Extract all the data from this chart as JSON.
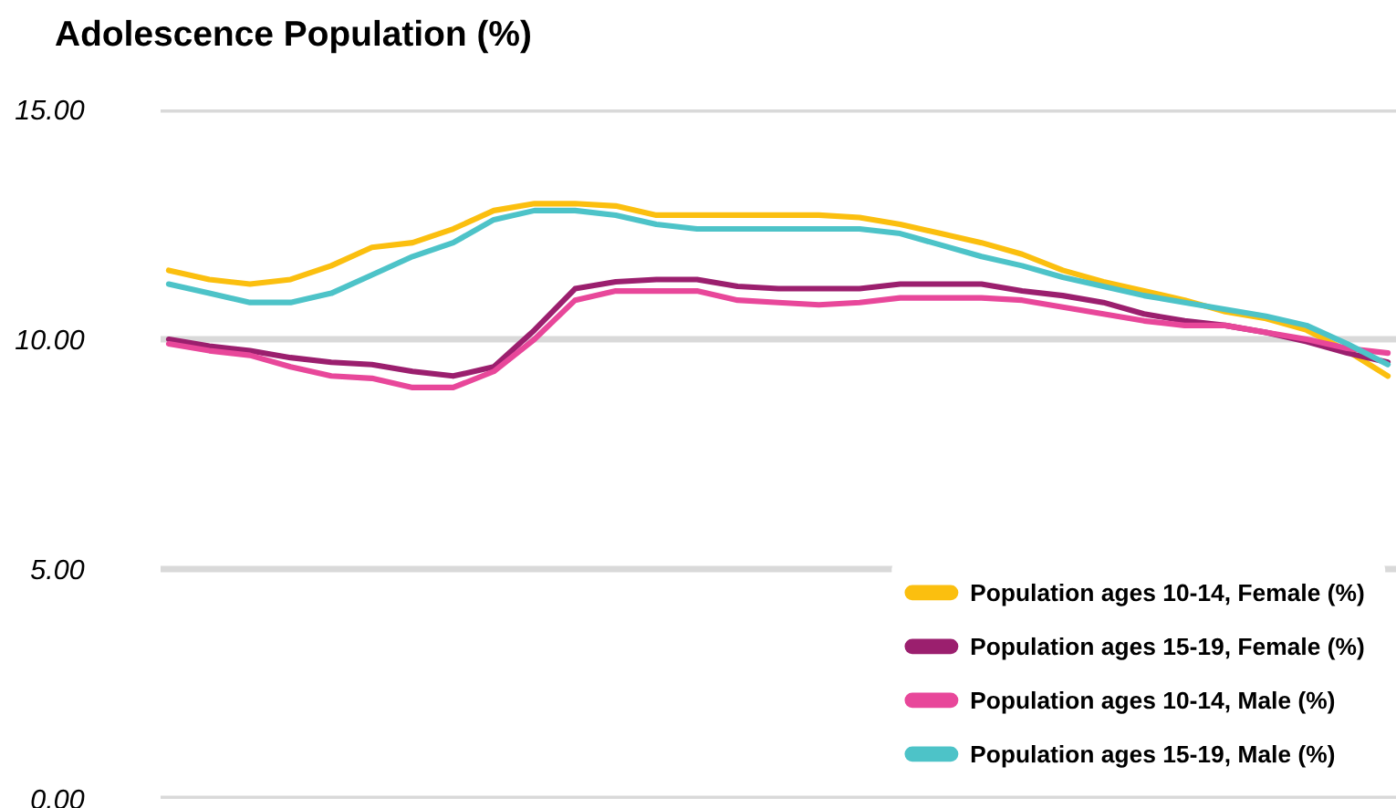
{
  "chart_data": {
    "type": "line",
    "title": "Adolescence Population (%)",
    "categories": [
      null,
      null,
      null,
      null,
      null,
      null,
      null,
      null,
      null,
      null,
      null,
      null,
      null,
      null,
      null,
      null,
      null,
      null,
      null,
      null,
      null,
      null,
      null,
      null,
      null,
      null,
      null,
      null,
      null,
      null,
      null
    ],
    "series": [
      {
        "name": "Population ages 10-14, Female (%)",
        "color": "#fbbf0f",
        "values": [
          11.5,
          11.3,
          11.2,
          11.3,
          11.6,
          12.0,
          12.1,
          12.4,
          12.8,
          12.95,
          12.95,
          12.9,
          12.7,
          12.7,
          12.7,
          12.7,
          12.7,
          12.65,
          12.5,
          12.3,
          12.1,
          11.85,
          11.5,
          11.25,
          11.05,
          10.85,
          10.6,
          10.45,
          10.2,
          9.75,
          9.2
        ]
      },
      {
        "name": "Population ages 15-19, Female (%)",
        "color": "#9b1f6e",
        "values": [
          10.0,
          9.85,
          9.75,
          9.6,
          9.5,
          9.45,
          9.3,
          9.2,
          9.4,
          10.2,
          11.1,
          11.25,
          11.3,
          11.3,
          11.15,
          11.1,
          11.1,
          11.1,
          11.2,
          11.2,
          11.2,
          11.05,
          10.95,
          10.8,
          10.55,
          10.4,
          10.3,
          10.15,
          9.95,
          9.7,
          9.5
        ]
      },
      {
        "name": "Population ages 10-14, Male (%)",
        "color": "#e8479a",
        "values": [
          9.9,
          9.75,
          9.65,
          9.4,
          9.2,
          9.15,
          8.95,
          8.95,
          9.3,
          10.0,
          10.85,
          11.05,
          11.05,
          11.05,
          10.85,
          10.8,
          10.75,
          10.8,
          10.9,
          10.9,
          10.9,
          10.85,
          10.7,
          10.55,
          10.4,
          10.3,
          10.3,
          10.15,
          10.0,
          9.8,
          9.7
        ]
      },
      {
        "name": "Population ages 15-19, Male (%)",
        "color": "#4dc3c8",
        "values": [
          11.2,
          11.0,
          10.8,
          10.8,
          11.0,
          11.4,
          11.8,
          12.1,
          12.6,
          12.8,
          12.8,
          12.7,
          12.5,
          12.4,
          12.4,
          12.4,
          12.4,
          12.4,
          12.3,
          12.05,
          11.8,
          11.6,
          11.35,
          11.15,
          10.95,
          10.8,
          10.65,
          10.5,
          10.3,
          9.9,
          9.45
        ]
      }
    ],
    "ylim": [
      0,
      15
    ],
    "yticks": [
      {
        "value": 0,
        "label": "0.00"
      },
      {
        "value": 5,
        "label": "5.00"
      },
      {
        "value": 10,
        "label": "10.00"
      },
      {
        "value": 15,
        "label": "15.00"
      }
    ],
    "grid": "y",
    "legend": "bottom right",
    "tick_labels": "y",
    "marker": "none",
    "line_style": "solid"
  }
}
